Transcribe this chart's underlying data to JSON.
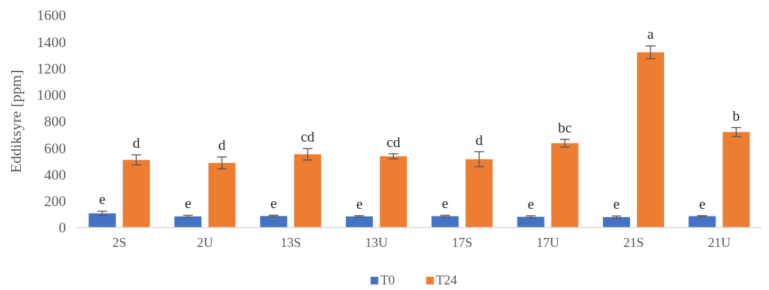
{
  "chart_data": {
    "type": "bar",
    "ylabel": "Eddiksyre [ppm]",
    "categories": [
      "2S",
      "2U",
      "13S",
      "13U",
      "17S",
      "17U",
      "21S",
      "21U"
    ],
    "series": [
      {
        "name": "T0",
        "color": "#4472c4",
        "values": [
          107,
          84,
          87,
          84,
          86,
          81,
          79,
          86
        ],
        "errors": [
          16,
          8,
          6,
          6,
          6,
          8,
          8,
          4
        ],
        "value_labels": [
          "e",
          "e",
          "e",
          "e",
          "e",
          "e",
          "e",
          "e"
        ]
      },
      {
        "name": "T24",
        "color": "#ed7d31",
        "values": [
          510,
          487,
          552,
          537,
          515,
          636,
          1321,
          720
        ],
        "errors": [
          38,
          45,
          43,
          19,
          57,
          29,
          48,
          34
        ],
        "value_labels": [
          "d",
          "d",
          "cd",
          "cd",
          "d",
          "bc",
          "a",
          "b"
        ]
      }
    ],
    "ylim": [
      0,
      1600
    ],
    "yticks": [
      0,
      200,
      400,
      600,
      800,
      1000,
      1200,
      1400,
      1600
    ],
    "grid": false,
    "legend": "bottom"
  }
}
